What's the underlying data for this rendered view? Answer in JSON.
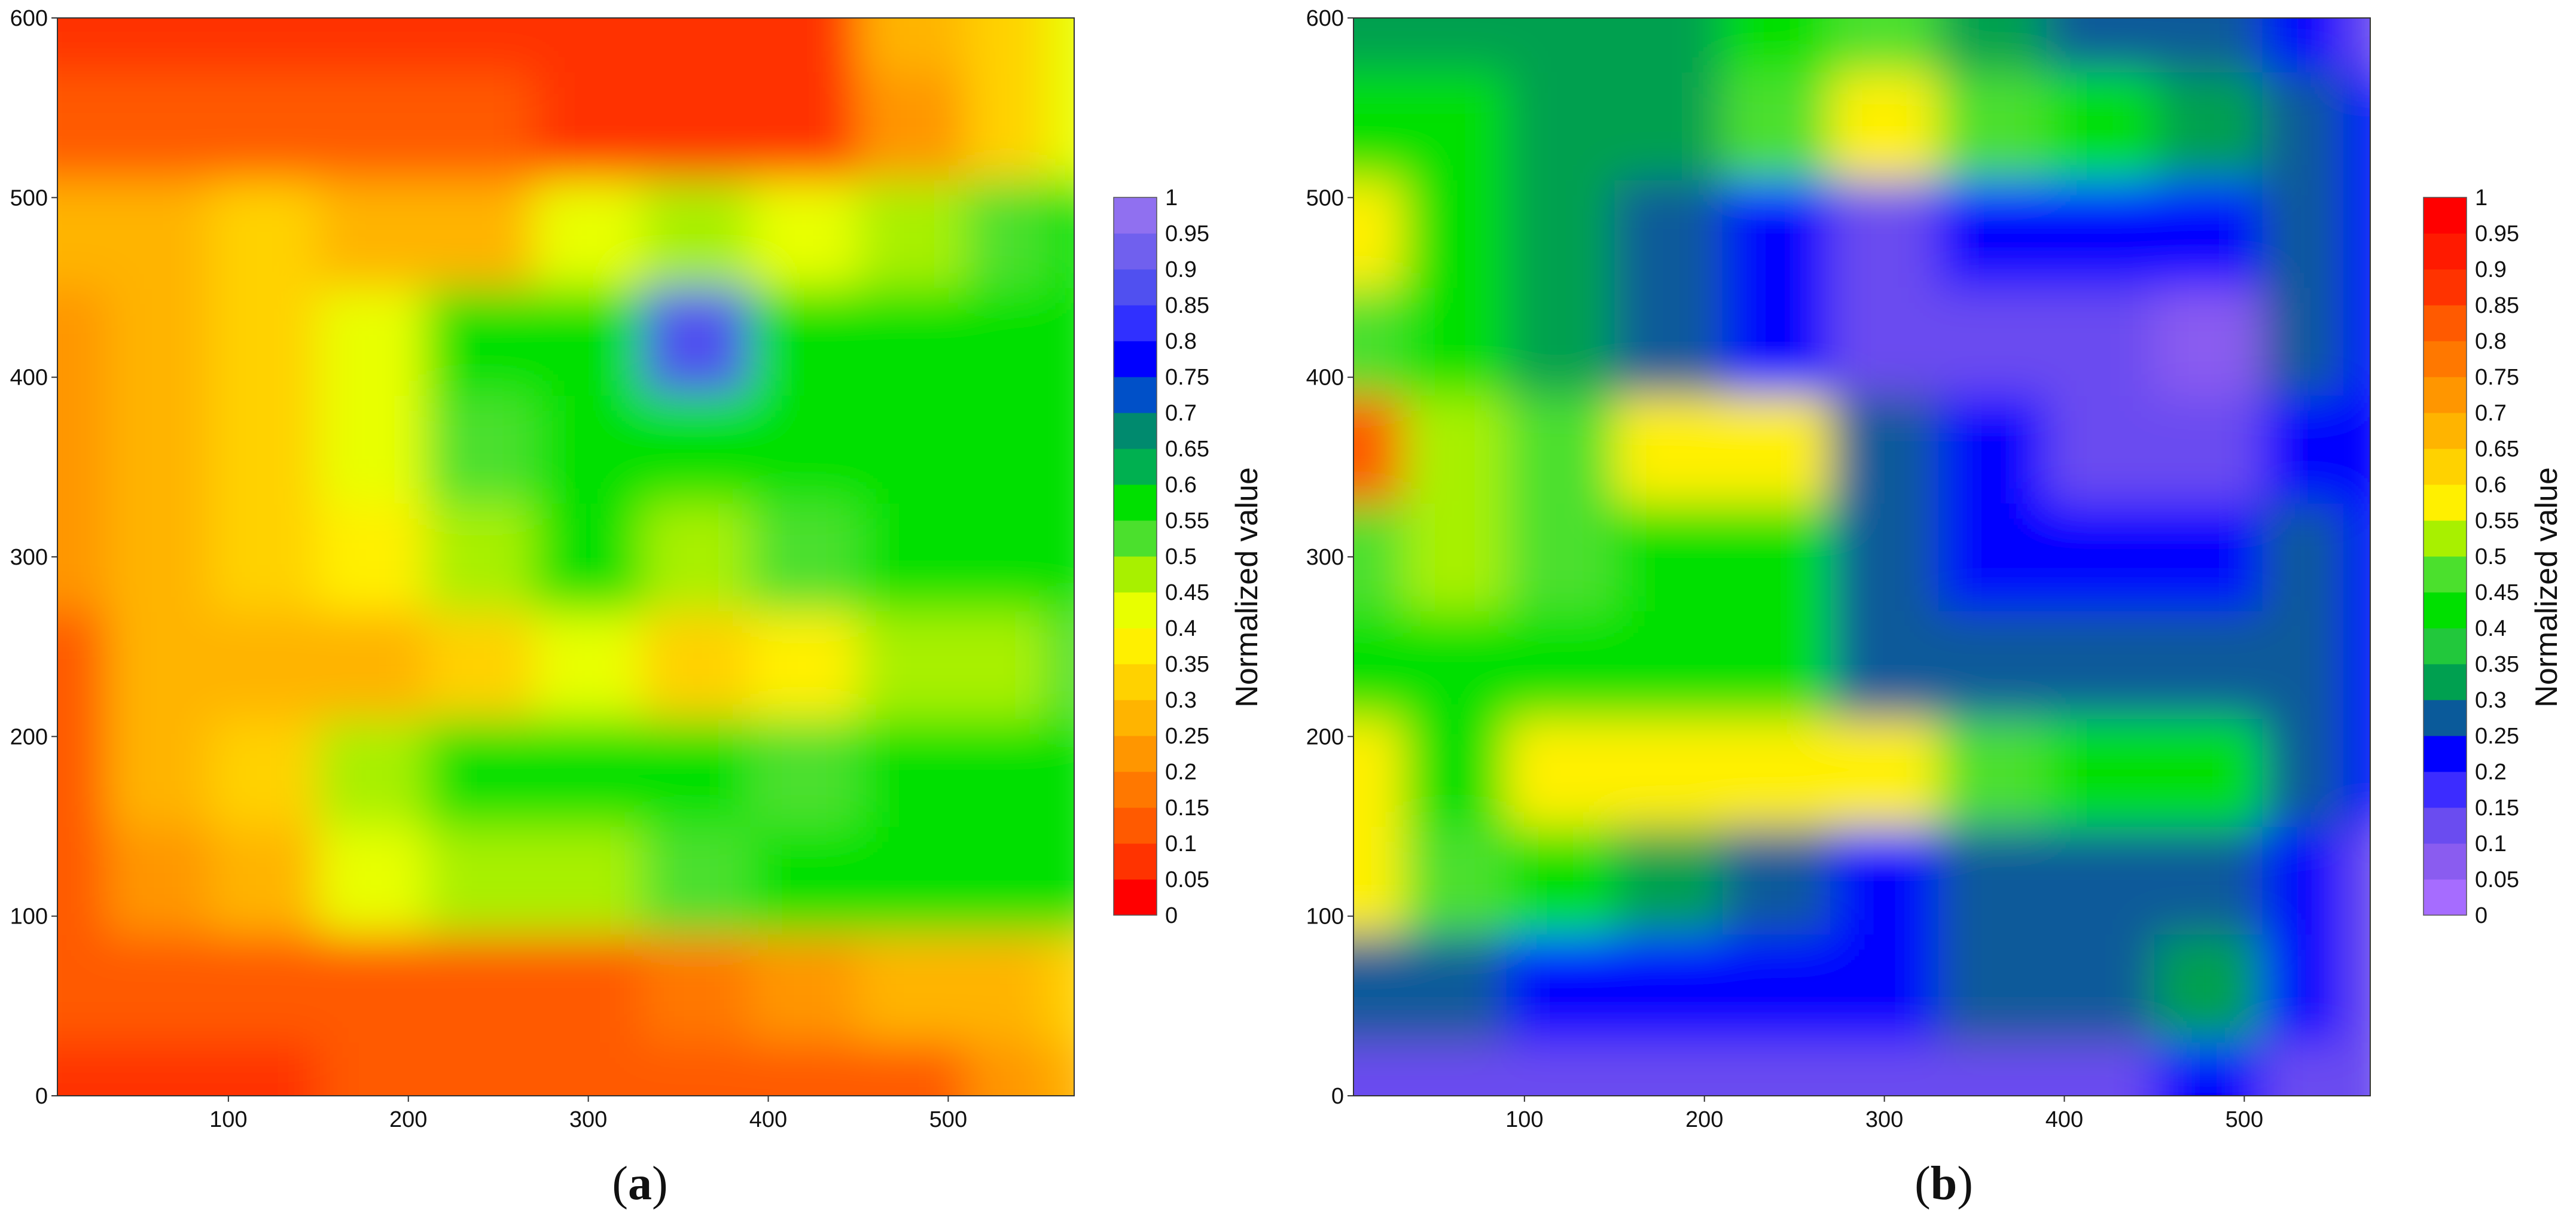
{
  "figure": {
    "panels": [
      {
        "panel_label": "a",
        "colorbar_label": "Normalized value",
        "colorbar_ticks": [
          "0",
          "0.05",
          "0.1",
          "0.15",
          "0.2",
          "0.25",
          "0.3",
          "0.35",
          "0.4",
          "0.45",
          "0.5",
          "0.55",
          "0.6",
          "0.65",
          "0.7",
          "0.75",
          "0.8",
          "0.85",
          "0.9",
          "0.95",
          "1"
        ],
        "colorbar_colors": [
          "#ff0000",
          "#ff3300",
          "#ff5a00",
          "#ff7800",
          "#ff9600",
          "#ffb400",
          "#ffd200",
          "#fff000",
          "#e8ff00",
          "#a8f000",
          "#4be02d",
          "#00e000",
          "#00b050",
          "#008a6e",
          "#0050c8",
          "#0000ff",
          "#3030ff",
          "#5050f0",
          "#7060ee",
          "#9070f0"
        ]
      },
      {
        "panel_label": "b",
        "colorbar_label": "Normalized value",
        "colorbar_ticks": [
          "0",
          "0.05",
          "0.1",
          "0.15",
          "0.2",
          "0.25",
          "0.3",
          "0.35",
          "0.4",
          "0.45",
          "0.5",
          "0.55",
          "0.6",
          "0.65",
          "0.7",
          "0.75",
          "0.8",
          "0.85",
          "0.9",
          "0.95",
          "1"
        ],
        "colorbar_colors": [
          "#a66cff",
          "#8a5cf0",
          "#6a4cf0",
          "#3c2cff",
          "#0000ff",
          "#0a5a9a",
          "#00a050",
          "#22c83c",
          "#00e000",
          "#4be02d",
          "#a8f000",
          "#fff000",
          "#ffd200",
          "#ffb400",
          "#ff9600",
          "#ff7800",
          "#ff5a00",
          "#ff3300",
          "#ff1a00",
          "#ff0000"
        ]
      }
    ]
  },
  "chart_data": [
    {
      "type": "heatmap",
      "title": "",
      "xlabel": "",
      "ylabel": "",
      "xlim": [
        5,
        570
      ],
      "ylim": [
        0,
        600
      ],
      "x_ticks": [
        100,
        200,
        300,
        400,
        500
      ],
      "y_ticks": [
        0,
        100,
        200,
        300,
        400,
        500,
        600
      ],
      "colorbar": {
        "label": "Normalized value",
        "range": [
          0,
          1
        ],
        "step": 0.05,
        "colormap": "red-yellow-green-blue-violet"
      },
      "grid": false,
      "legend": "colorbar right",
      "x": [
        5,
        60,
        120,
        180,
        240,
        300,
        360,
        420,
        480,
        540,
        570
      ],
      "y": [
        0,
        60,
        120,
        180,
        240,
        300,
        360,
        420,
        480,
        540,
        600
      ],
      "z": [
        [
          0.08,
          0.08,
          0.08,
          0.1,
          0.1,
          0.1,
          0.1,
          0.12,
          0.15,
          0.2,
          0.3
        ],
        [
          0.1,
          0.1,
          0.12,
          0.14,
          0.14,
          0.14,
          0.18,
          0.2,
          0.25,
          0.3,
          0.35
        ],
        [
          0.15,
          0.22,
          0.3,
          0.4,
          0.45,
          0.45,
          0.5,
          0.55,
          0.55,
          0.6,
          0.58
        ],
        [
          0.15,
          0.28,
          0.35,
          0.45,
          0.55,
          0.6,
          0.58,
          0.5,
          0.58,
          0.6,
          0.6
        ],
        [
          0.15,
          0.3,
          0.3,
          0.3,
          0.35,
          0.4,
          0.35,
          0.38,
          0.45,
          0.48,
          0.5
        ],
        [
          0.2,
          0.28,
          0.32,
          0.38,
          0.45,
          0.55,
          0.45,
          0.5,
          0.6,
          0.6,
          0.6
        ],
        [
          0.2,
          0.28,
          0.35,
          0.4,
          0.5,
          0.6,
          0.6,
          0.6,
          0.6,
          0.6,
          0.6
        ],
        [
          0.22,
          0.3,
          0.35,
          0.4,
          0.55,
          0.6,
          0.85,
          0.55,
          0.58,
          0.6,
          0.6
        ],
        [
          0.25,
          0.3,
          0.35,
          0.3,
          0.3,
          0.4,
          0.45,
          0.4,
          0.45,
          0.5,
          0.55
        ],
        [
          0.1,
          0.12,
          0.12,
          0.1,
          0.1,
          0.08,
          0.05,
          0.05,
          0.2,
          0.35,
          0.4
        ],
        [
          0.05,
          0.05,
          0.05,
          0.05,
          0.08,
          0.05,
          0.05,
          0.05,
          0.25,
          0.35,
          0.4
        ]
      ]
    },
    {
      "type": "heatmap",
      "title": "",
      "xlabel": "",
      "ylabel": "",
      "xlim": [
        5,
        570
      ],
      "ylim": [
        0,
        600
      ],
      "x_ticks": [
        100,
        200,
        300,
        400,
        500
      ],
      "y_ticks": [
        0,
        100,
        200,
        300,
        400,
        500,
        600
      ],
      "colorbar": {
        "label": "Normalized value",
        "range": [
          0,
          1
        ],
        "step": 0.05,
        "colormap": "violet-blue-green-yellow-red"
      },
      "grid": false,
      "legend": "colorbar right",
      "x": [
        5,
        60,
        120,
        180,
        240,
        300,
        360,
        420,
        480,
        540,
        570
      ],
      "y": [
        0,
        60,
        120,
        180,
        240,
        300,
        360,
        420,
        480,
        540,
        600
      ],
      "z": [
        [
          0.15,
          0.15,
          0.15,
          0.15,
          0.15,
          0.15,
          0.15,
          0.15,
          0.2,
          0.15,
          0.1
        ],
        [
          0.25,
          0.3,
          0.2,
          0.2,
          0.2,
          0.2,
          0.25,
          0.25,
          0.35,
          0.2,
          0.15
        ],
        [
          0.55,
          0.45,
          0.4,
          0.35,
          0.3,
          0.2,
          0.3,
          0.25,
          0.25,
          0.2,
          0.15
        ],
        [
          0.55,
          0.4,
          0.55,
          0.6,
          0.55,
          0.55,
          0.45,
          0.4,
          0.4,
          0.3,
          0.2
        ],
        [
          0.4,
          0.4,
          0.4,
          0.4,
          0.4,
          0.3,
          0.25,
          0.25,
          0.3,
          0.25,
          0.2
        ],
        [
          0.45,
          0.5,
          0.45,
          0.4,
          0.4,
          0.25,
          0.2,
          0.2,
          0.2,
          0.25,
          0.2
        ],
        [
          0.8,
          0.5,
          0.45,
          0.6,
          0.55,
          0.25,
          0.2,
          0.15,
          0.15,
          0.2,
          0.2
        ],
        [
          0.45,
          0.4,
          0.35,
          0.25,
          0.2,
          0.15,
          0.15,
          0.1,
          0.05,
          0.25,
          0.2
        ],
        [
          0.55,
          0.4,
          0.35,
          0.25,
          0.2,
          0.15,
          0.2,
          0.2,
          0.2,
          0.25,
          0.2
        ],
        [
          0.4,
          0.4,
          0.35,
          0.35,
          0.45,
          0.55,
          0.45,
          0.4,
          0.35,
          0.3,
          0.2
        ],
        [
          0.35,
          0.35,
          0.35,
          0.35,
          0.4,
          0.45,
          0.35,
          0.3,
          0.25,
          0.2,
          0.15
        ]
      ]
    }
  ]
}
